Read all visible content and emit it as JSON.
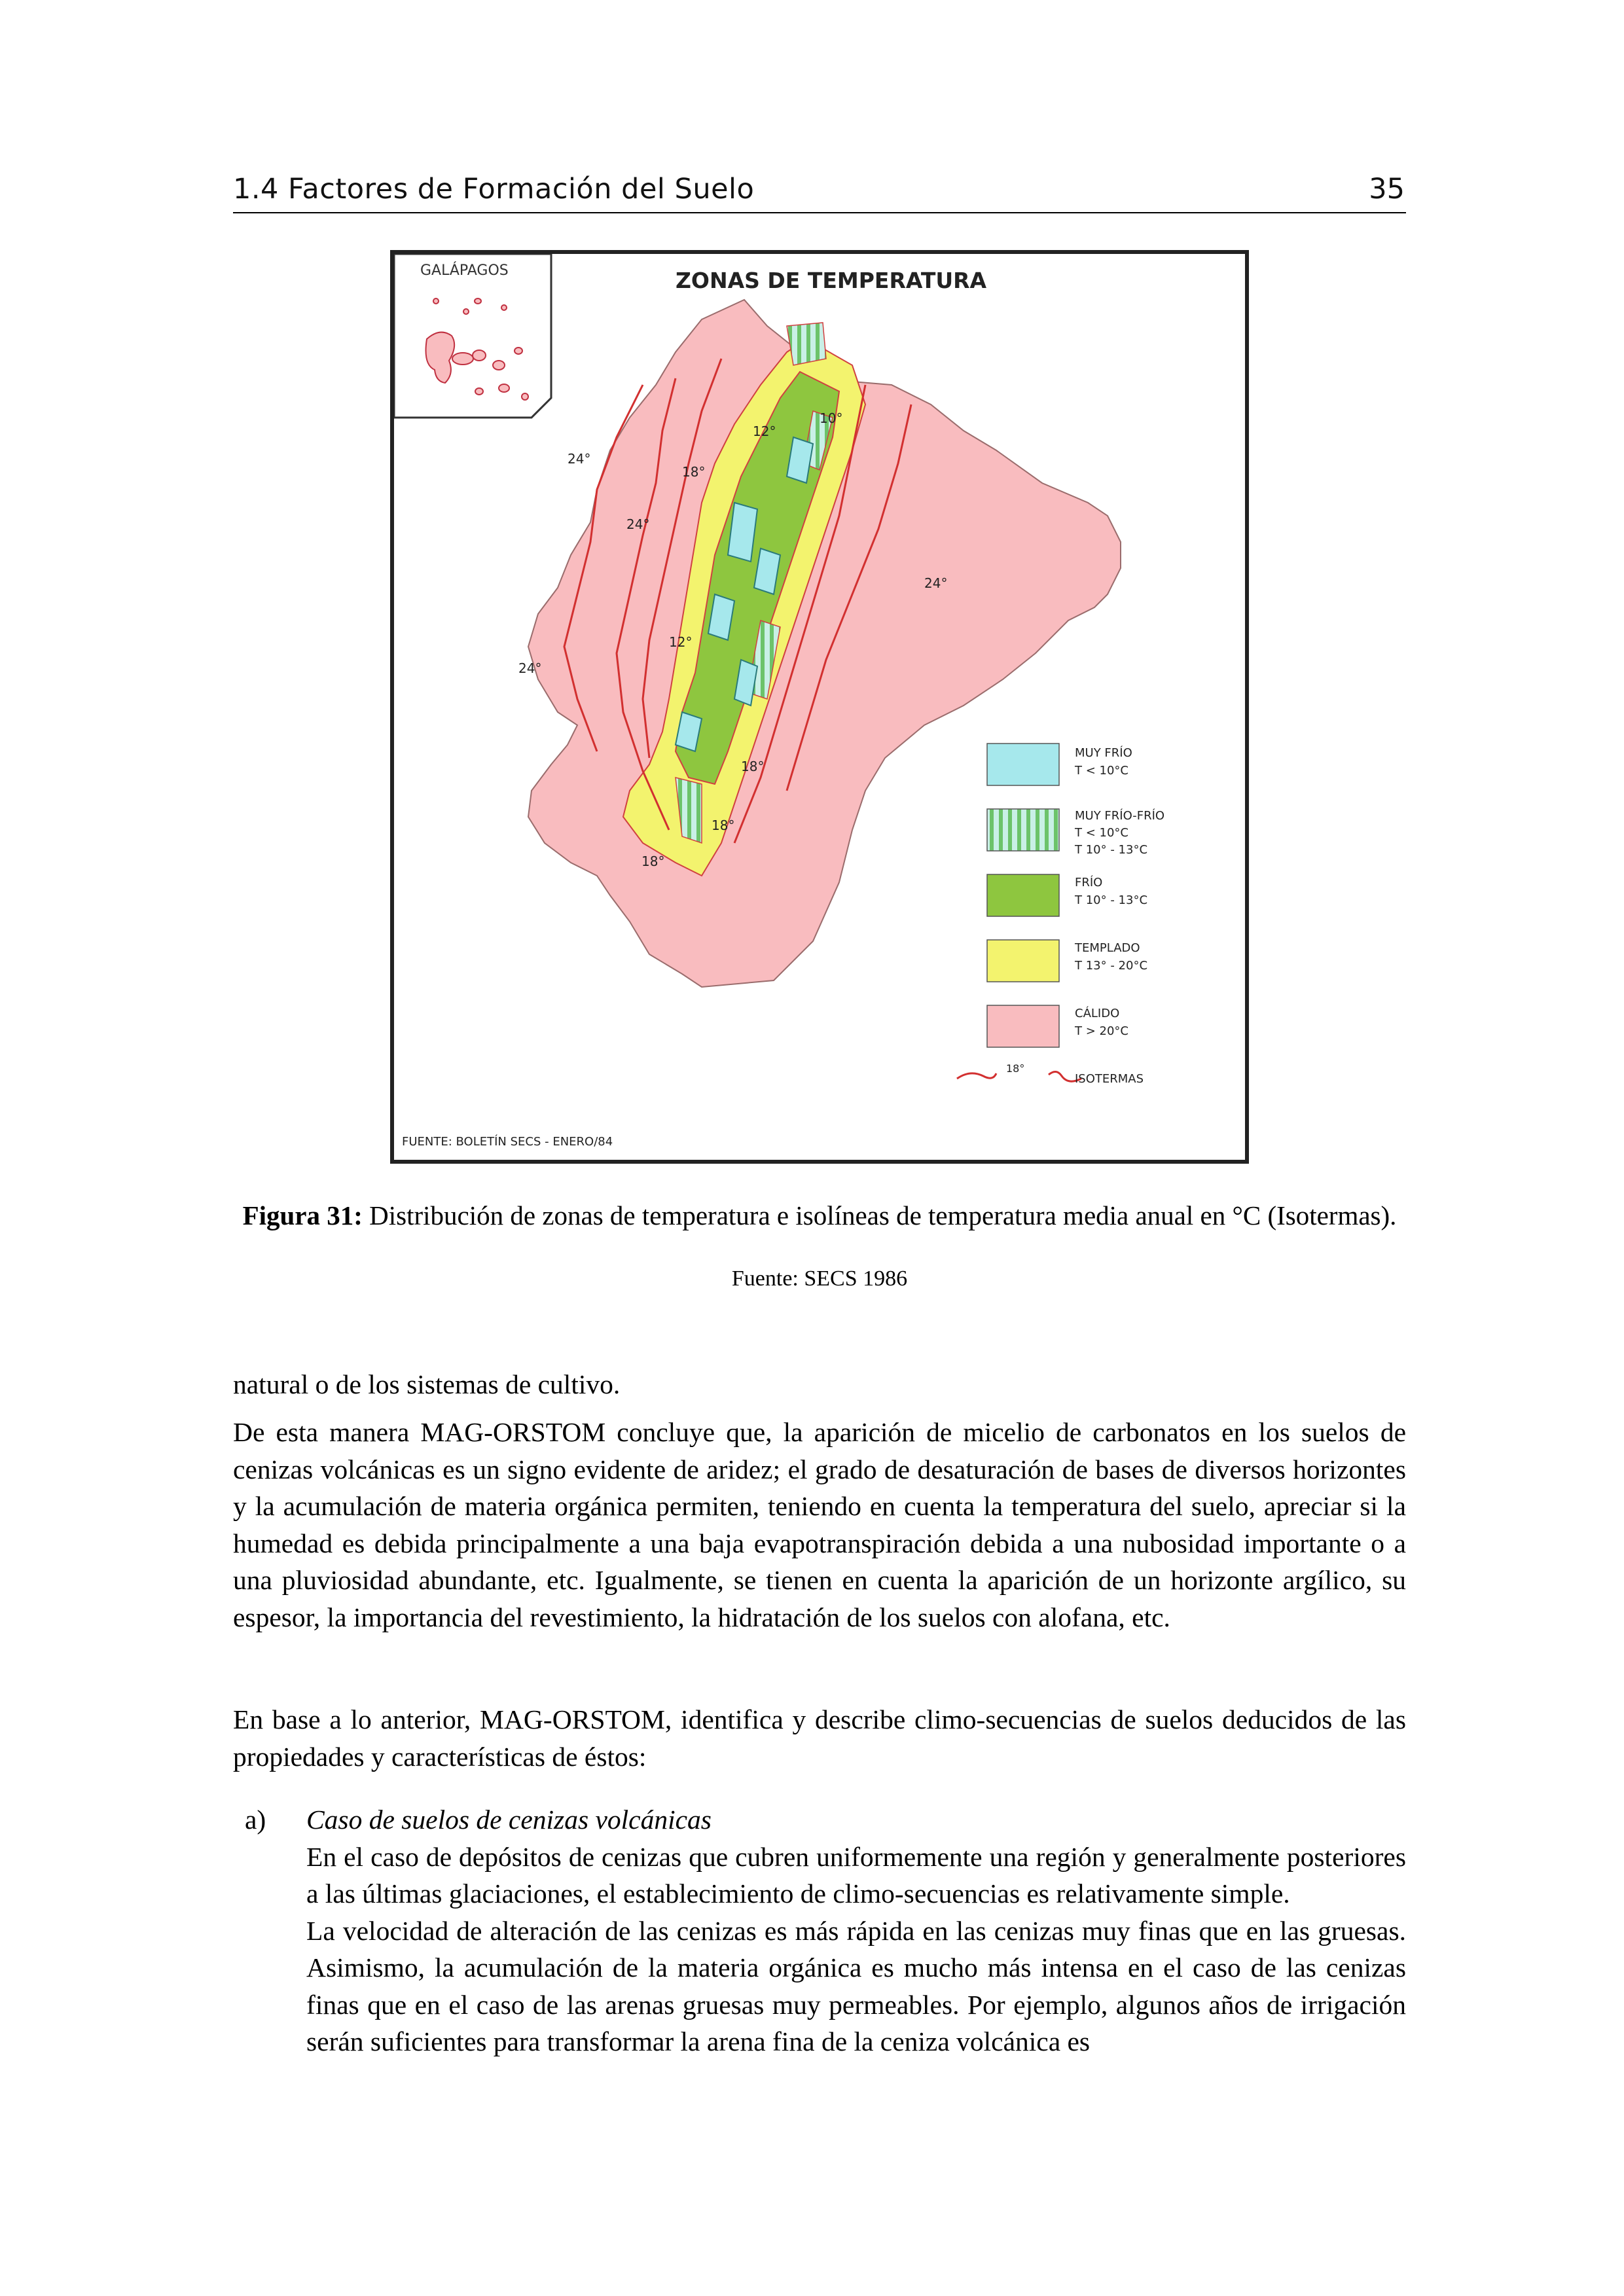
{
  "header": {
    "chapter": "1.4  Factores de Formación del Suelo",
    "page_number": "35"
  },
  "figure": {
    "map_title": "ZONAS DE TEMPERATURA",
    "inset_label": "GALÁPAGOS",
    "source_note": "FUENTE: BOLETÍN SECS - ENERO/84",
    "isotherm_labels": [
      "24°",
      "24°",
      "24°",
      "24°",
      "18°",
      "18°",
      "18°",
      "18°",
      "12°",
      "12°",
      "10°"
    ],
    "legend": [
      {
        "name": "MUY FRÍO",
        "line2": "T < 10°C",
        "line3": "",
        "color": "#a6e8ec",
        "pattern": "solid"
      },
      {
        "name": "MUY FRÍO-FRÍO",
        "line2": "T < 10°C",
        "line3": "T 10° - 13°C",
        "color": "#a6e8ec",
        "pattern": "stripes"
      },
      {
        "name": "FRÍO",
        "line2": "T 10° - 13°C",
        "line3": "",
        "color": "#8ec63f",
        "pattern": "solid"
      },
      {
        "name": "TEMPLADO",
        "line2": "T 13° - 20°C",
        "line3": "",
        "color": "#f3f36e",
        "pattern": "solid"
      },
      {
        "name": "CÁLIDO",
        "line2": "T > 20°C",
        "line3": "",
        "color": "#f9bcbf",
        "pattern": "solid"
      }
    ],
    "isotherm_legend": {
      "label": "ISOTERMAS",
      "sample": "18°",
      "color": "#e03030"
    }
  },
  "caption": {
    "label": "Figura 31:",
    "text": " Distribución de zonas de temperatura e isolíneas de temperatura media anual en °C (Isotermas).",
    "source": "Fuente: SECS 1986"
  },
  "paragraphs": [
    "natural o de los sistemas de cultivo.",
    "De esta manera MAG-ORSTOM concluye que, la aparición de micelio de carbonatos en los suelos de cenizas volcánicas es un signo evidente de aridez; el grado de desaturación de bases de diversos horizontes y la acumulación de materia orgánica permiten, teniendo en cuenta la temperatura del suelo, apreciar si la humedad es debida principalmente a una baja evapotranspiración debida a una nubosidad importante o a una pluviosidad abundante, etc. Igualmente, se tienen en cuenta la aparición de un horizonte argílico, su espesor, la importancia del revestimiento, la hidratación de los suelos con alofana, etc.",
    "En base a lo anterior, MAG-ORSTOM, identifica y describe climo-secuencias de suelos deducidos de las propiedades y características de éstos:"
  ],
  "list_item": {
    "marker": "a)",
    "title": "Caso de suelos de cenizas volcánicas",
    "text1": "En el caso de depósitos de cenizas que cubren uniformemente una región y generalmente posteriores a las últimas glaciaciones, el establecimiento de climo-secuencias es relativamente simple.",
    "text2": "La velocidad de alteración de las cenizas es más rápida en las cenizas muy finas que en las gruesas. Asimismo, la acumulación de la materia orgánica es mucho más intensa en el caso de las cenizas finas que en el caso de las arenas gruesas muy permeables. Por ejemplo, algunos años de irrigación serán suficientes para transformar la arena fina de la ceniza volcánica es"
  }
}
